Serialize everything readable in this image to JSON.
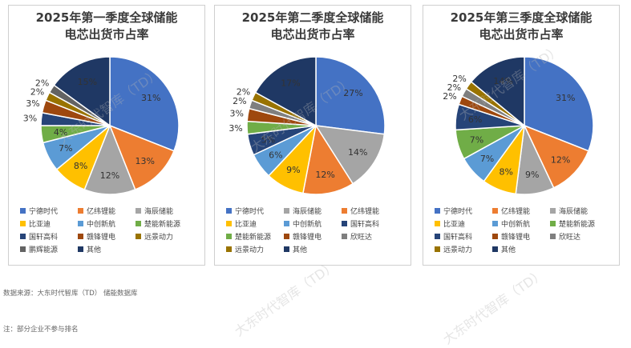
{
  "colors": {
    "宁德时代": "#4472c4",
    "亿纬锂能": "#ed7d31",
    "海辰储能": "#a5a5a5",
    "比亚迪": "#ffc000",
    "中创新航": "#5b9bd5",
    "楚能新能源": "#70ad47",
    "国轩高科": "#264478",
    "赣锋锂电": "#9e480e",
    "远景动力": "#997300",
    "鹏辉能源": "#636363",
    "欣旺达": "#7f7f7f",
    "其他": "#1f3864"
  },
  "watermark_text": "大东时代智库（TD）",
  "footnotes": {
    "source": "数据来源：大东时代智库（TD） 储能数据库",
    "note": "注：部分企业不参与排名"
  },
  "chart_data": [
    {
      "type": "pie",
      "title": "2025年第一季度全球储能电芯出货市占率",
      "title_lines": [
        "2025年第一季度全球储能",
        "电芯出货市占率"
      ],
      "slices": [
        {
          "name": "宁德时代",
          "value": 31
        },
        {
          "name": "亿纬锂能",
          "value": 13
        },
        {
          "name": "海辰储能",
          "value": 12
        },
        {
          "name": "比亚迪",
          "value": 8
        },
        {
          "name": "中创新航",
          "value": 7
        },
        {
          "name": "楚能新能源",
          "value": 4
        },
        {
          "name": "国轩高科",
          "value": 3
        },
        {
          "name": "赣锋锂电",
          "value": 3
        },
        {
          "name": "远景动力",
          "value": 2
        },
        {
          "name": "鹏辉能源",
          "value": 2
        },
        {
          "name": "其他",
          "value": 15
        }
      ],
      "legend": [
        "宁德时代",
        "亿纬锂能",
        "海辰储能",
        "比亚迪",
        "中创新航",
        "楚能新能源",
        "国轩高科",
        "赣锋锂电",
        "远景动力",
        "鹏辉能源",
        "其他"
      ]
    },
    {
      "type": "pie",
      "title": "2025年第二季度全球储能电芯出货市占率",
      "title_lines": [
        "2025年第二季度全球储能",
        "电芯出货市占率"
      ],
      "slices": [
        {
          "name": "宁德时代",
          "value": 27
        },
        {
          "name": "海辰储能",
          "value": 14
        },
        {
          "name": "亿纬锂能",
          "value": 12
        },
        {
          "name": "比亚迪",
          "value": 9
        },
        {
          "name": "中创新航",
          "value": 6
        },
        {
          "name": "国轩高科",
          "value": 5
        },
        {
          "name": "楚能新能源",
          "value": 3
        },
        {
          "name": "赣锋锂电",
          "value": 3
        },
        {
          "name": "欣旺达",
          "value": 2
        },
        {
          "name": "远景动力",
          "value": 2
        },
        {
          "name": "其他",
          "value": 17
        }
      ],
      "legend": [
        "宁德时代",
        "海辰储能",
        "亿纬锂能",
        "比亚迪",
        "中创新航",
        "国轩高科",
        "楚能新能源",
        "赣锋锂电",
        "欣旺达",
        "远景动力",
        "其他"
      ]
    },
    {
      "type": "pie",
      "title": "2025年第三季度全球储能电芯出货市占率",
      "title_lines": [
        "2025年第三季度全球储能",
        "电芯出货市占率"
      ],
      "slices": [
        {
          "name": "宁德时代",
          "value": 31
        },
        {
          "name": "亿纬锂能",
          "value": 12
        },
        {
          "name": "海辰储能",
          "value": 9
        },
        {
          "name": "比亚迪",
          "value": 8
        },
        {
          "name": "中创新航",
          "value": 7
        },
        {
          "name": "楚能新能源",
          "value": 7
        },
        {
          "name": "国轩高科",
          "value": 6
        },
        {
          "name": "赣锋锂电",
          "value": 2
        },
        {
          "name": "欣旺达",
          "value": 2
        },
        {
          "name": "远景动力",
          "value": 2
        },
        {
          "name": "其他",
          "value": 14
        }
      ],
      "legend": [
        "宁德时代",
        "亿纬锂能",
        "海辰储能",
        "比亚迪",
        "中创新航",
        "楚能新能源",
        "国轩高科",
        "赣锋锂电",
        "欣旺达",
        "远景动力",
        "其他"
      ]
    }
  ]
}
